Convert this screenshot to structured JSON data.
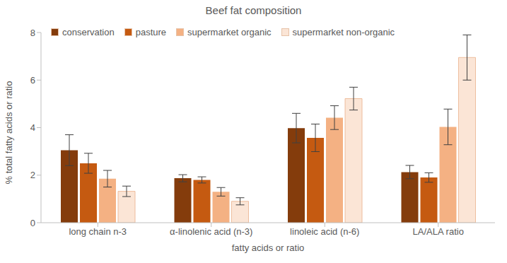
{
  "chart_data": {
    "type": "bar",
    "title": "Beef fat composition",
    "x_label": "fatty acids or ratio",
    "y_label": "% total fatty acids or ratio",
    "categories": [
      "long chain n-3",
      "α-linolenic acid (n-3)",
      "linoleic acid (n-6)",
      "LA/ALA ratio"
    ],
    "series": [
      {
        "name": "conservation",
        "color": "#843c0c",
        "values": [
          3.05,
          1.87,
          3.98,
          2.13
        ],
        "errors": [
          0.65,
          0.15,
          0.62,
          0.28
        ]
      },
      {
        "name": "pasture",
        "color": "#c55a11",
        "values": [
          2.5,
          1.8,
          3.57,
          1.9
        ],
        "errors": [
          0.42,
          0.13,
          0.58,
          0.2
        ]
      },
      {
        "name": "supermarket organic",
        "color": "#f4b183",
        "values": [
          1.85,
          1.3,
          4.42,
          4.03
        ],
        "errors": [
          0.35,
          0.18,
          0.5,
          0.75
        ]
      },
      {
        "name": "supermarket non-organic",
        "color": "#fbe5d6",
        "values": [
          1.32,
          0.9,
          5.22,
          6.95
        ],
        "errors": [
          0.22,
          0.15,
          0.48,
          0.95
        ]
      }
    ],
    "ylim": [
      0,
      8
    ],
    "yticks": [
      0,
      2,
      4,
      6,
      8
    ],
    "grid": false,
    "legend": "top-left"
  }
}
